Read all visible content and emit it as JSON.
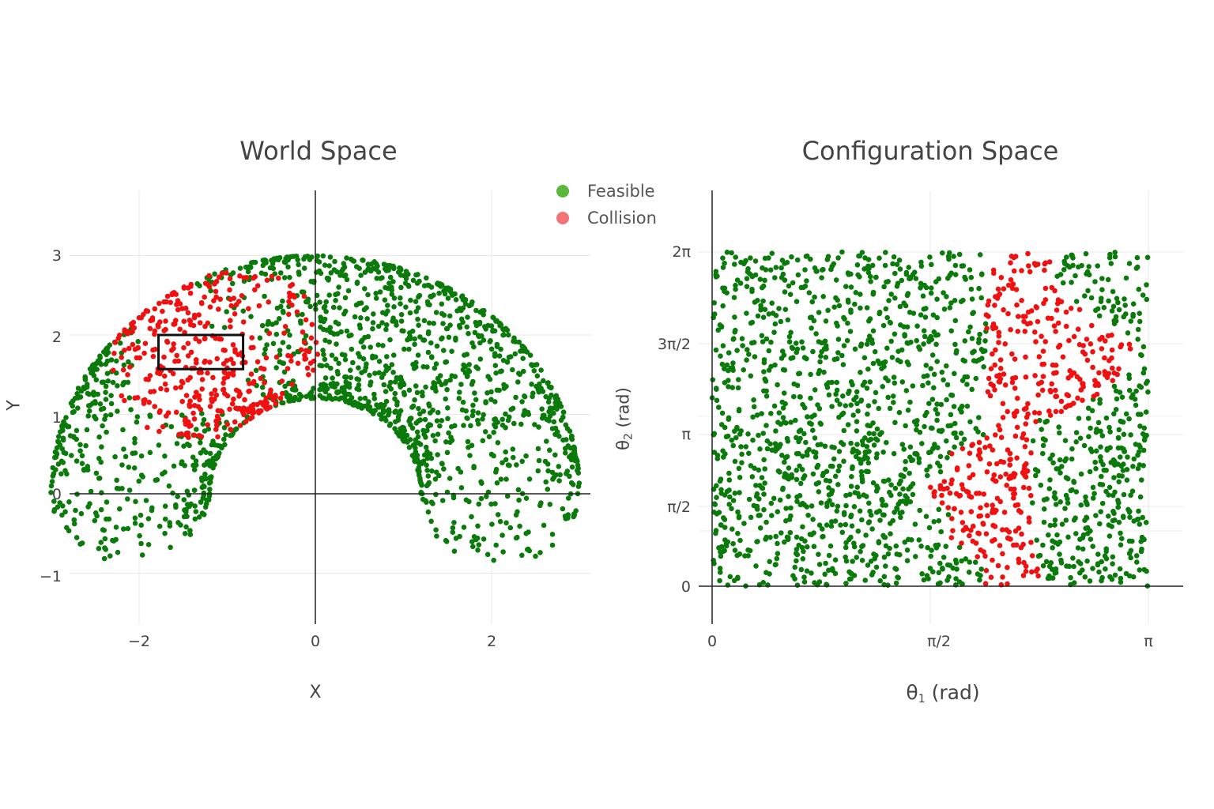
{
  "legend": {
    "items": [
      {
        "label": "Feasible",
        "color": "#5cb83c"
      },
      {
        "label": "Collision",
        "color": "#f57376"
      }
    ]
  },
  "world": {
    "title": "World Space",
    "xlabel": "X",
    "ylabel": "Y",
    "xticks": [
      {
        "v": -2,
        "label": "−2"
      },
      {
        "v": 0,
        "label": "0"
      },
      {
        "v": 2,
        "label": "2"
      }
    ],
    "yticks": [
      {
        "v": -1,
        "label": "−1"
      },
      {
        "v": 0,
        "label": "0"
      },
      {
        "v": 1,
        "label": "1"
      },
      {
        "v": 2,
        "label": "2"
      },
      {
        "v": 3,
        "label": "3"
      }
    ]
  },
  "config": {
    "title": "Configuration Space",
    "xlabel_symbol": "θ",
    "xlabel_sub": "1",
    "xlabel_unit": " (rad)",
    "ylabel_symbol": "θ",
    "ylabel_sub": "2",
    "ylabel_unit": " (rad)",
    "xticks": [
      {
        "v": 0,
        "label": "0"
      },
      {
        "v": 1.5708,
        "label": "π/2"
      },
      {
        "v": 3.1416,
        "label": "π"
      }
    ],
    "yticks": [
      {
        "v": 0,
        "label": "0"
      },
      {
        "v": 1.5708,
        "label": "π/2"
      },
      {
        "v": 3.1416,
        "label": "π"
      },
      {
        "v": 4.7124,
        "label": "3π/2"
      },
      {
        "v": 6.2832,
        "label": "2π"
      }
    ]
  },
  "colors": {
    "feasible_marker": "#0a7a0a",
    "collision_marker": "#f01010",
    "grid": "#e8e8e8",
    "zeroline": "#222222",
    "obstacle": "#111111"
  },
  "chart_data": [
    {
      "type": "scatter",
      "title": "World Space",
      "xlabel": "X",
      "ylabel": "Y",
      "xlim": [
        -2.8,
        3.1
      ],
      "ylim": [
        -1.65,
        3.8
      ],
      "grid": true,
      "legend_position": "top-right (between subplots)",
      "series": [
        {
          "name": "Feasible",
          "color": "#0a7a0a",
          "description": "end-effector positions of collision-free configurations; fills half-annulus r≈1.2–3.0 for y≥0 plus lobes down to y≈−0.8 near x≈±1.9"
        },
        {
          "name": "Collision",
          "color": "#f01010",
          "description": "end-effector positions of colliding configurations; concentrated around x∈[−2.0,−0.3], y∈[0.7,2.7]"
        }
      ],
      "obstacle_rect": {
        "x0": -1.78,
        "x1": -0.82,
        "y0": 1.57,
        "y1": 2.0
      },
      "arm_model": {
        "L1": 2.1,
        "L2": 0.9,
        "theta1_range": [
          0,
          3.1416
        ],
        "theta2_range": [
          0,
          6.2832
        ],
        "samples": 2000
      }
    },
    {
      "type": "scatter",
      "title": "Configuration Space",
      "xlabel": "θ₁ (rad)",
      "ylabel": "θ₂ (rad)",
      "xlim": [
        0,
        3.1416
      ],
      "ylim": [
        0,
        6.2832
      ],
      "xtick_labels": [
        "0",
        "π/2",
        "π"
      ],
      "ytick_labels": [
        "0",
        "π/2",
        "π",
        "3π/2",
        "2π"
      ],
      "grid": true,
      "series": [
        {
          "name": "Feasible",
          "color": "#0a7a0a",
          "description": "uniform samples over [0,π]×[0,2π] without collision"
        },
        {
          "name": "Collision",
          "color": "#f01010",
          "description": "collision band at θ₁≈2.1–2.8 rad, spanning θ₂ 0–0.8π and 1.3π–2π"
        }
      ]
    }
  ]
}
